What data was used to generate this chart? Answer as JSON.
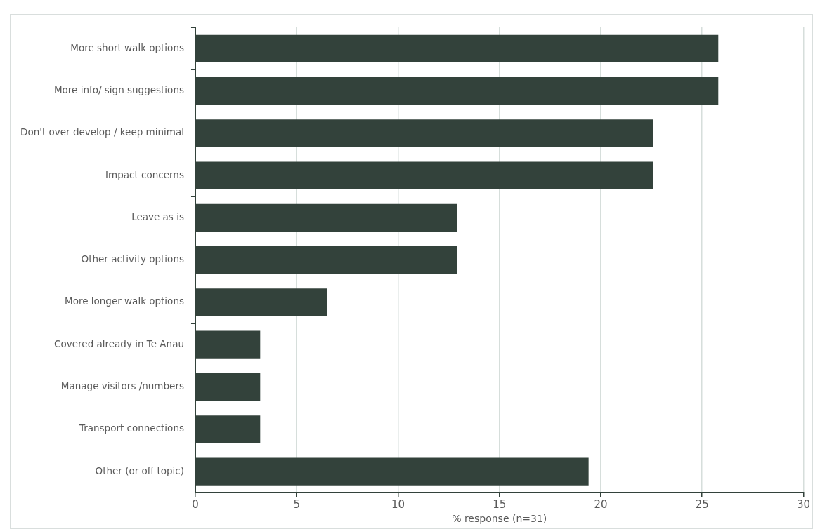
{
  "chart_data": {
    "type": "bar",
    "orientation": "horizontal",
    "xlabel": "% response (n=31)",
    "categories": [
      "More short walk options",
      "More info/ sign suggestions",
      "Don't over develop / keep minimal",
      "Impact concerns",
      "Leave as is",
      "Other activity options",
      "More longer walk options",
      "Covered already in Te Anau",
      "Manage visitors /numbers",
      "Transport connections",
      "Other (or off topic)"
    ],
    "values": [
      25.8,
      25.8,
      22.6,
      22.6,
      12.9,
      12.9,
      6.5,
      3.2,
      3.2,
      3.2,
      19.4
    ],
    "color": "#33423b",
    "xlim": [
      0,
      30
    ],
    "xticks": [
      0,
      5,
      10,
      15,
      20,
      25,
      30
    ],
    "grid": "x"
  }
}
